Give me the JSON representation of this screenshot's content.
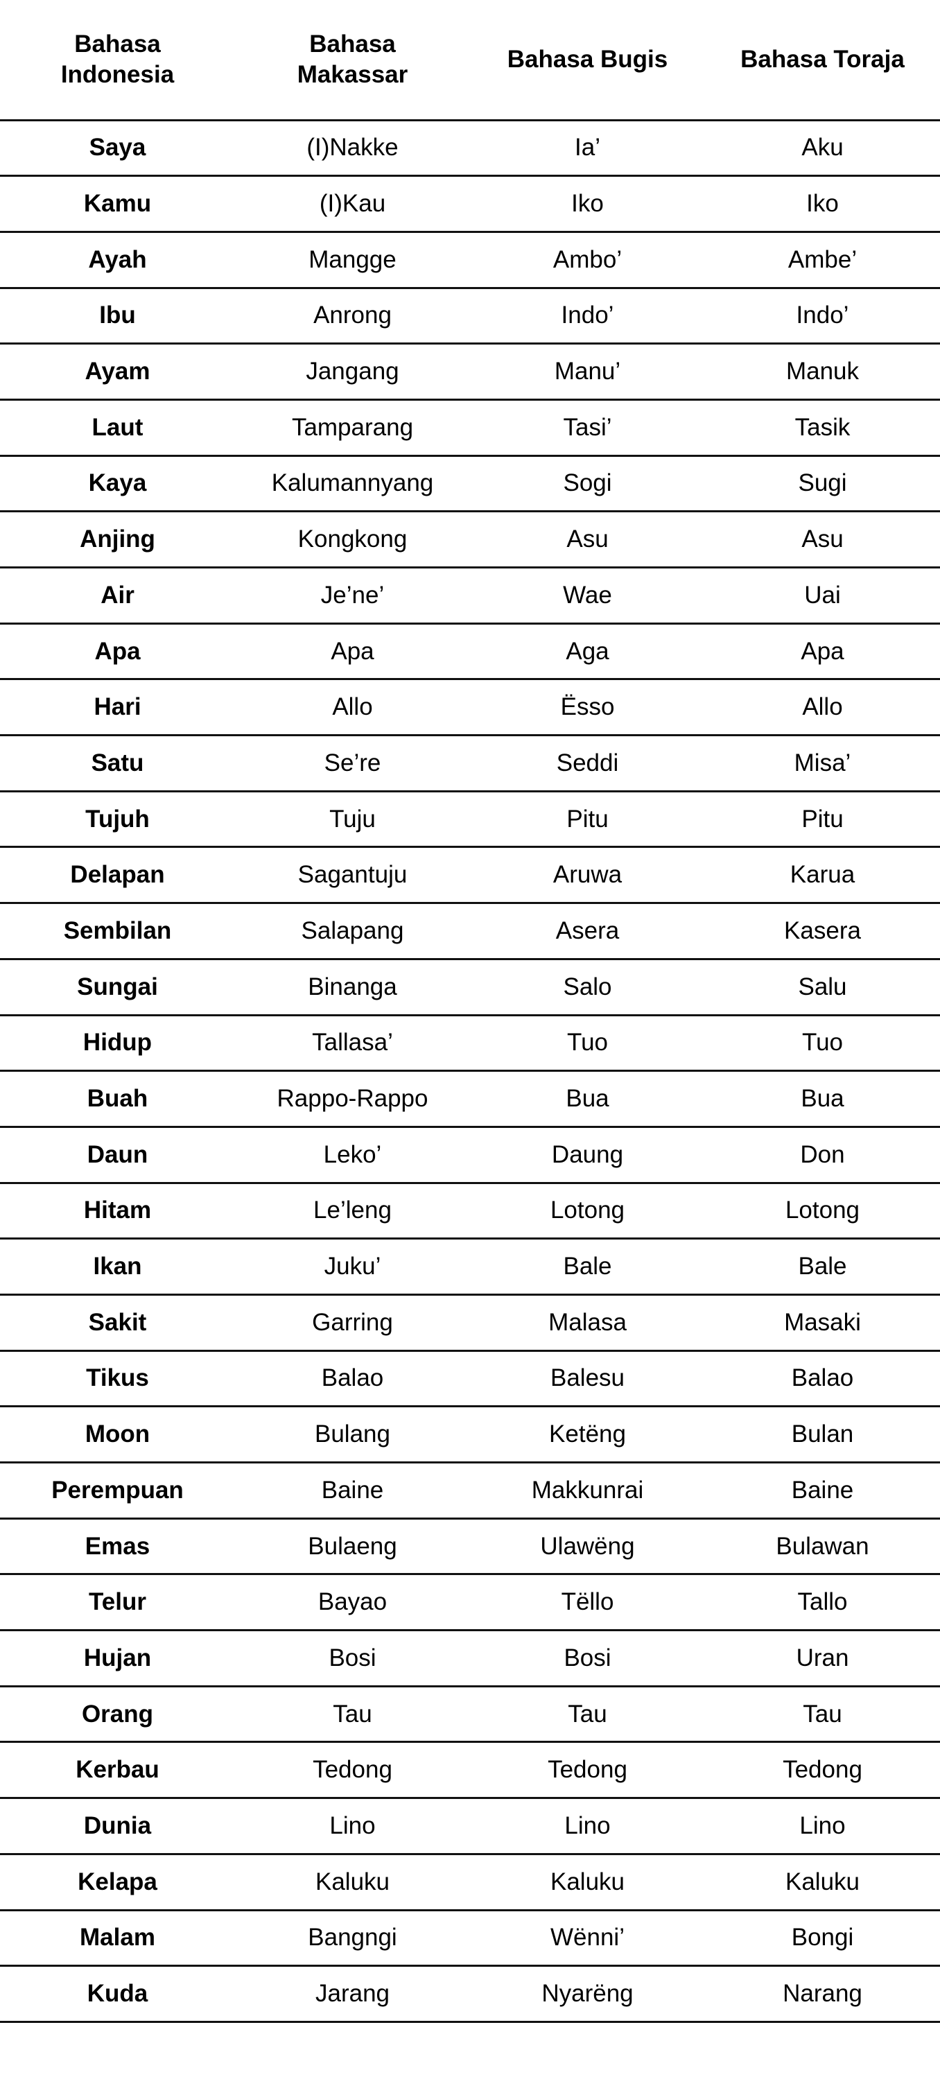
{
  "headers": [
    "Bahasa Indonesia",
    "Bahasa Makassar",
    "Bahasa Bugis",
    "Bahasa Toraja"
  ],
  "header_lines": [
    [
      "Bahasa",
      "Indonesia"
    ],
    [
      "Bahasa",
      "Makassar"
    ],
    [
      "Bahasa Bugis"
    ],
    [
      "Bahasa Toraja"
    ]
  ],
  "rows": [
    [
      "Saya",
      "(I)Nakke",
      "Ia’",
      "Aku"
    ],
    [
      "Kamu",
      "(I)Kau",
      "Iko",
      "Iko"
    ],
    [
      "Ayah",
      "Mangge",
      "Ambo’",
      "Ambe’"
    ],
    [
      "Ibu",
      "Anrong",
      "Indo’",
      "Indo’"
    ],
    [
      "Ayam",
      "Jangang",
      "Manu’",
      "Manuk"
    ],
    [
      "Laut",
      "Tamparang",
      "Tasi’",
      "Tasik"
    ],
    [
      "Kaya",
      "Kalumannyang",
      "Sogi",
      "Sugi"
    ],
    [
      "Anjing",
      "Kongkong",
      "Asu",
      "Asu"
    ],
    [
      "Air",
      "Je’ne’",
      "Wae",
      "Uai"
    ],
    [
      "Apa",
      "Apa",
      "Aga",
      "Apa"
    ],
    [
      "Hari",
      "Allo",
      "Ësso",
      "Allo"
    ],
    [
      "Satu",
      "Se’re",
      "Seddi",
      "Misa’"
    ],
    [
      "Tujuh",
      "Tuju",
      "Pitu",
      "Pitu"
    ],
    [
      "Delapan",
      "Sagantuju",
      "Aruwa",
      "Karua"
    ],
    [
      "Sembilan",
      "Salapang",
      "Asera",
      "Kasera"
    ],
    [
      "Sungai",
      "Binanga",
      "Salo",
      "Salu"
    ],
    [
      "Hidup",
      "Tallasa’",
      "Tuo",
      "Tuo"
    ],
    [
      "Buah",
      "Rappo-Rappo",
      "Bua",
      "Bua"
    ],
    [
      "Daun",
      "Leko’",
      "Daung",
      "Don"
    ],
    [
      "Hitam",
      "Le’leng",
      "Lotong",
      "Lotong"
    ],
    [
      "Ikan",
      "Juku’",
      "Bale",
      "Bale"
    ],
    [
      "Sakit",
      "Garring",
      "Malasa",
      "Masaki"
    ],
    [
      "Tikus",
      "Balao",
      "Balesu",
      "Balao"
    ],
    [
      "Moon",
      "Bulang",
      "Ketëng",
      "Bulan"
    ],
    [
      "Perempuan",
      "Baine",
      "Makkunrai",
      "Baine"
    ],
    [
      "Emas",
      "Bulaeng",
      "Ulawëng",
      "Bulawan"
    ],
    [
      "Telur",
      "Bayao",
      "Tëllo",
      "Tallo"
    ],
    [
      "Hujan",
      "Bosi",
      "Bosi",
      "Uran"
    ],
    [
      "Orang",
      "Tau",
      "Tau",
      "Tau"
    ],
    [
      "Kerbau",
      "Tedong",
      "Tedong",
      "Tedong"
    ],
    [
      "Dunia",
      "Lino",
      "Lino",
      "Lino"
    ],
    [
      "Kelapa",
      "Kaluku",
      "Kaluku",
      "Kaluku"
    ],
    [
      "Malam",
      "Bangngi",
      "Wënni’",
      "Bongi"
    ],
    [
      "Kuda",
      "Jarang",
      "Nyarëng",
      "Narang"
    ]
  ]
}
